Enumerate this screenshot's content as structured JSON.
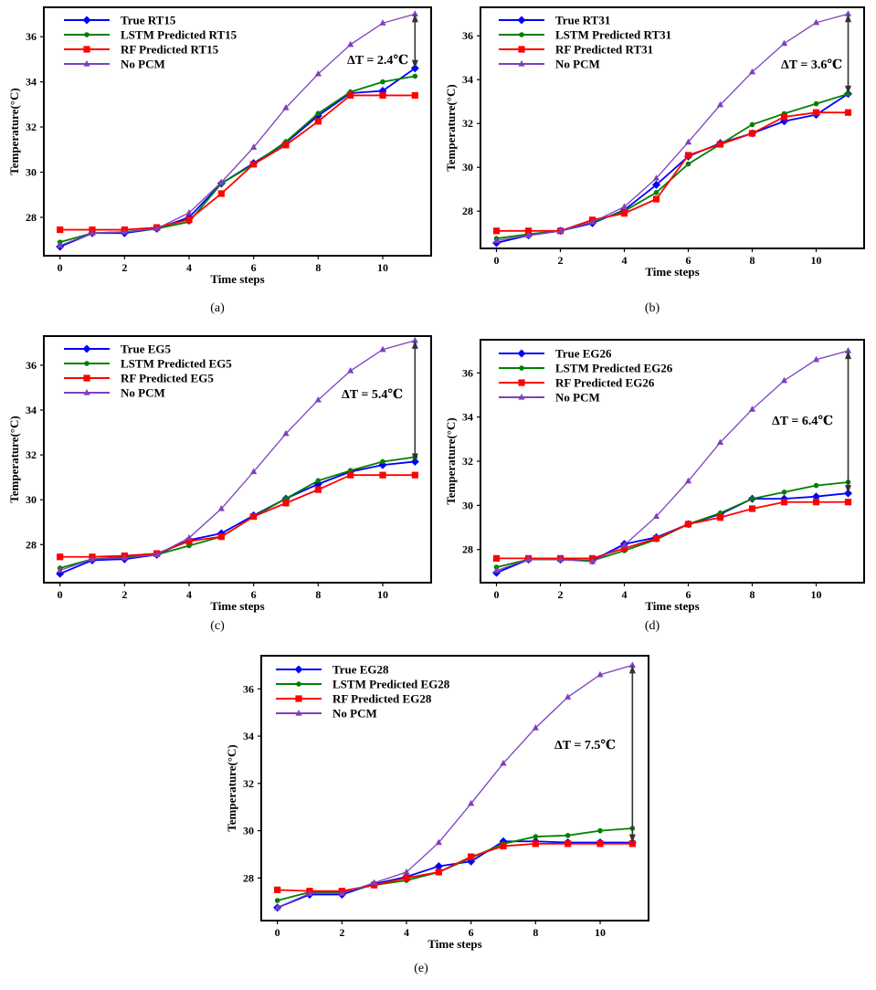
{
  "figure": {
    "captions": [
      "(a)",
      "(b)",
      "(c)",
      "(d)",
      "(e)"
    ]
  },
  "chart_data": [
    {
      "type": "line",
      "panel": "(a)",
      "xlabel": "Time steps",
      "ylabel": "Temperature(°C)",
      "x": [
        0,
        1,
        2,
        3,
        4,
        5,
        6,
        7,
        8,
        9,
        10,
        11
      ],
      "xticks": [
        0,
        2,
        4,
        6,
        8,
        10
      ],
      "yticks": [
        28,
        30,
        32,
        34,
        36
      ],
      "xlim": [
        -0.5,
        11.5
      ],
      "ylim": [
        26.3,
        37.3
      ],
      "grid": false,
      "legend_position": "top-left",
      "annotation": "ΔT = 2.4℃",
      "series": [
        {
          "name": "True RT15",
          "color": "#0000ff",
          "marker": "diamond",
          "values": [
            26.7,
            27.3,
            27.3,
            27.5,
            28.0,
            29.5,
            30.4,
            31.3,
            32.5,
            33.5,
            33.6,
            34.6
          ]
        },
        {
          "name": "LSTM Predicted RT15",
          "color": "#008000",
          "marker": "circle",
          "values": [
            26.9,
            27.3,
            27.35,
            27.5,
            27.8,
            29.5,
            30.35,
            31.35,
            32.6,
            33.55,
            34.0,
            34.25
          ]
        },
        {
          "name": "RF Predicted RT15",
          "color": "#ff0000",
          "marker": "square",
          "values": [
            27.45,
            27.45,
            27.45,
            27.55,
            27.9,
            29.05,
            30.35,
            31.2,
            32.25,
            33.4,
            33.4,
            33.4
          ]
        },
        {
          "name": "No PCM",
          "color": "#7f3fbf",
          "marker": "triangle",
          "values": [
            26.75,
            27.3,
            27.35,
            27.5,
            28.2,
            29.55,
            31.1,
            32.85,
            34.35,
            35.65,
            36.6,
            37.0
          ]
        }
      ]
    },
    {
      "type": "line",
      "panel": "(b)",
      "xlabel": "Time steps",
      "ylabel": "Temperature(°C)",
      "x": [
        0,
        1,
        2,
        3,
        4,
        5,
        6,
        7,
        8,
        9,
        10,
        11
      ],
      "xticks": [
        0,
        2,
        4,
        6,
        8,
        10
      ],
      "yticks": [
        28,
        30,
        32,
        34,
        36
      ],
      "xlim": [
        -0.5,
        11.5
      ],
      "ylim": [
        26.3,
        37.3
      ],
      "grid": false,
      "legend_position": "top-left",
      "annotation": "ΔT = 3.6℃",
      "series": [
        {
          "name": "True RT31",
          "color": "#0000ff",
          "marker": "diamond",
          "values": [
            26.55,
            26.9,
            27.1,
            27.45,
            28.05,
            29.2,
            30.5,
            31.1,
            31.55,
            32.1,
            32.4,
            33.35
          ]
        },
        {
          "name": "LSTM Predicted RT31",
          "color": "#008000",
          "marker": "circle",
          "values": [
            26.75,
            26.95,
            27.1,
            27.5,
            28.0,
            28.85,
            30.15,
            31.05,
            31.95,
            32.45,
            32.9,
            33.35
          ]
        },
        {
          "name": "RF Predicted RT31",
          "color": "#ff0000",
          "marker": "square",
          "values": [
            27.1,
            27.1,
            27.1,
            27.6,
            27.9,
            28.55,
            30.55,
            31.05,
            31.55,
            32.3,
            32.5,
            32.5
          ]
        },
        {
          "name": "No PCM",
          "color": "#7f3fbf",
          "marker": "triangle",
          "values": [
            26.65,
            26.9,
            27.1,
            27.5,
            28.2,
            29.5,
            31.15,
            32.85,
            34.35,
            35.65,
            36.6,
            37.0
          ]
        }
      ]
    },
    {
      "type": "line",
      "panel": "(c)",
      "xlabel": "Time steps",
      "ylabel": "Temperature(°C)",
      "x": [
        0,
        1,
        2,
        3,
        4,
        5,
        6,
        7,
        8,
        9,
        10,
        11
      ],
      "xticks": [
        0,
        2,
        4,
        6,
        8,
        10
      ],
      "yticks": [
        28,
        30,
        32,
        34,
        36
      ],
      "xlim": [
        -0.5,
        11.5
      ],
      "ylim": [
        26.3,
        37.3
      ],
      "grid": false,
      "legend_position": "top-left",
      "annotation": "ΔT = 5.4℃",
      "series": [
        {
          "name": "True EG5",
          "color": "#0000ff",
          "marker": "diamond",
          "values": [
            26.7,
            27.3,
            27.35,
            27.55,
            28.2,
            28.5,
            29.3,
            30.05,
            30.7,
            31.25,
            31.55,
            31.7
          ]
        },
        {
          "name": "LSTM Predicted EG5",
          "color": "#008000",
          "marker": "circle",
          "values": [
            26.95,
            27.35,
            27.45,
            27.55,
            27.95,
            28.35,
            29.25,
            30.05,
            30.85,
            31.3,
            31.7,
            31.9
          ]
        },
        {
          "name": "RF Predicted EG5",
          "color": "#ff0000",
          "marker": "square",
          "values": [
            27.45,
            27.45,
            27.5,
            27.6,
            28.15,
            28.35,
            29.25,
            29.85,
            30.45,
            31.1,
            31.1,
            31.1
          ]
        },
        {
          "name": "No PCM",
          "color": "#7f3fbf",
          "marker": "triangle",
          "values": [
            26.85,
            27.35,
            27.4,
            27.55,
            28.3,
            29.6,
            31.25,
            32.95,
            34.45,
            35.75,
            36.7,
            37.1
          ]
        }
      ]
    },
    {
      "type": "line",
      "panel": "(d)",
      "xlabel": "Time steps",
      "ylabel": "Temperature(°C)",
      "x": [
        0,
        1,
        2,
        3,
        4,
        5,
        6,
        7,
        8,
        9,
        10,
        11
      ],
      "xticks": [
        0,
        2,
        4,
        6,
        8,
        10
      ],
      "yticks": [
        28,
        30,
        32,
        34,
        36
      ],
      "xlim": [
        -0.5,
        11.5
      ],
      "ylim": [
        26.5,
        37.5
      ],
      "grid": false,
      "legend_position": "top-left",
      "annotation": "ΔT = 6.4℃",
      "series": [
        {
          "name": "True EG26",
          "color": "#0000ff",
          "marker": "diamond",
          "values": [
            26.95,
            27.55,
            27.55,
            27.5,
            28.25,
            28.55,
            29.15,
            29.6,
            30.3,
            30.3,
            30.4,
            30.55
          ]
        },
        {
          "name": "LSTM Predicted EG26",
          "color": "#008000",
          "marker": "circle",
          "values": [
            27.2,
            27.55,
            27.55,
            27.5,
            27.95,
            28.45,
            29.15,
            29.65,
            30.3,
            30.6,
            30.9,
            31.05
          ]
        },
        {
          "name": "RF Predicted EG26",
          "color": "#ff0000",
          "marker": "square",
          "values": [
            27.6,
            27.6,
            27.6,
            27.6,
            28.05,
            28.5,
            29.15,
            29.45,
            29.85,
            30.15,
            30.15,
            30.15
          ]
        },
        {
          "name": "No PCM",
          "color": "#7f3fbf",
          "marker": "triangle",
          "values": [
            27.05,
            27.55,
            27.55,
            27.45,
            28.2,
            29.5,
            31.1,
            32.85,
            34.35,
            35.65,
            36.6,
            37.0
          ]
        }
      ]
    },
    {
      "type": "line",
      "panel": "(e)",
      "xlabel": "Time steps",
      "ylabel": "Temperature(°C)",
      "x": [
        0,
        1,
        2,
        3,
        4,
        5,
        6,
        7,
        8,
        9,
        10,
        11
      ],
      "xticks": [
        0,
        2,
        4,
        6,
        8,
        10
      ],
      "yticks": [
        28,
        30,
        32,
        34,
        36
      ],
      "xlim": [
        -0.5,
        11.5
      ],
      "ylim": [
        26.2,
        37.4
      ],
      "grid": false,
      "legend_position": "top-left",
      "annotation": "ΔT = 7.5℃",
      "series": [
        {
          "name": "True EG28",
          "color": "#0000ff",
          "marker": "diamond",
          "values": [
            26.75,
            27.3,
            27.3,
            27.75,
            28.05,
            28.5,
            28.7,
            29.55,
            29.55,
            29.5,
            29.5,
            29.5
          ]
        },
        {
          "name": "LSTM Predicted EG28",
          "color": "#008000",
          "marker": "circle",
          "values": [
            27.05,
            27.4,
            27.4,
            27.7,
            27.9,
            28.25,
            28.85,
            29.45,
            29.75,
            29.8,
            30.0,
            30.1
          ]
        },
        {
          "name": "RF Predicted EG28",
          "color": "#ff0000",
          "marker": "square",
          "values": [
            27.5,
            27.45,
            27.45,
            27.7,
            28.0,
            28.25,
            28.9,
            29.35,
            29.45,
            29.45,
            29.45,
            29.45
          ]
        },
        {
          "name": "No PCM",
          "color": "#7f3fbf",
          "marker": "triangle",
          "values": [
            26.75,
            27.35,
            27.35,
            27.8,
            28.25,
            29.5,
            31.15,
            32.85,
            34.35,
            35.65,
            36.6,
            37.0
          ]
        }
      ]
    }
  ]
}
